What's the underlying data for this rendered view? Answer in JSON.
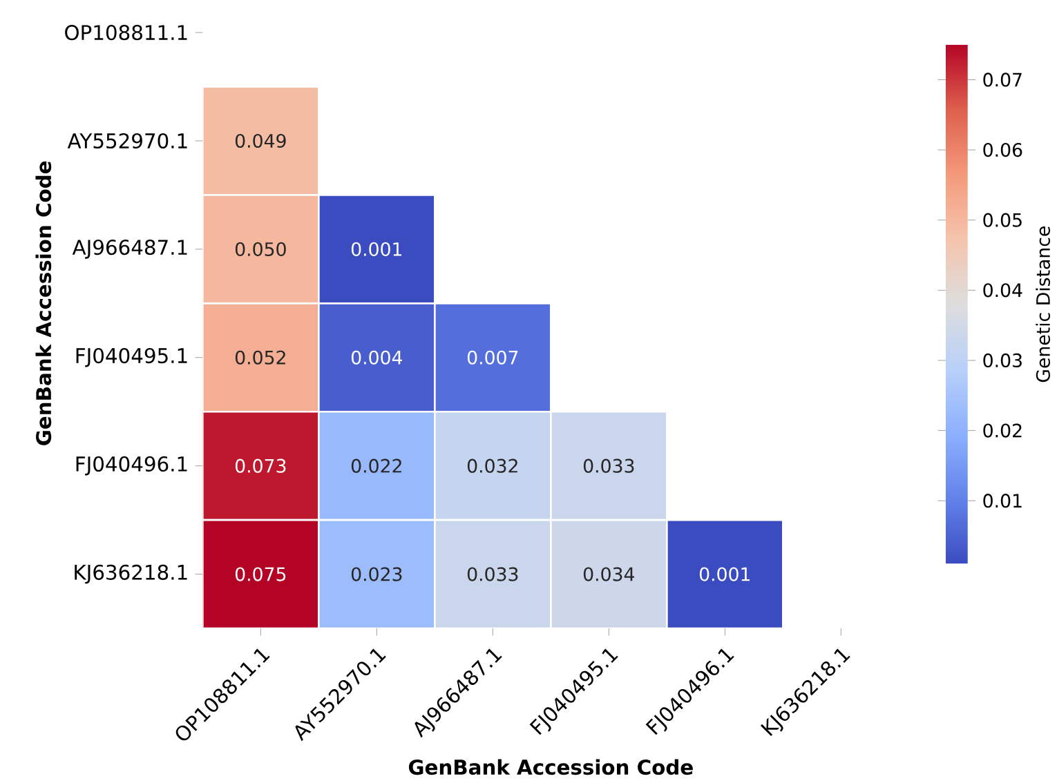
{
  "chart_data": {
    "type": "heatmap",
    "xlabel": "GenBank Accession Code",
    "ylabel": "GenBank Accession Code",
    "clabel": "Genetic Distance",
    "categories": [
      "OP108811.1",
      "AY552970.1",
      "AJ966487.1",
      "FJ040495.1",
      "FJ040496.1",
      "KJ636218.1"
    ],
    "y_categories": [
      "OP108811.1",
      "AY552970.1",
      "AJ966487.1",
      "FJ040495.1",
      "FJ040496.1",
      "KJ636218.1"
    ],
    "cells": [
      [
        null,
        null,
        null,
        null,
        null,
        null
      ],
      [
        0.049,
        null,
        null,
        null,
        null,
        null
      ],
      [
        0.05,
        0.001,
        null,
        null,
        null,
        null
      ],
      [
        0.052,
        0.004,
        0.007,
        null,
        null,
        null
      ],
      [
        0.073,
        0.022,
        0.032,
        0.033,
        null,
        null
      ],
      [
        0.075,
        0.023,
        0.033,
        0.034,
        0.001,
        null
      ]
    ],
    "cell_labels": [
      [
        null,
        null,
        null,
        null,
        null,
        null
      ],
      [
        "0.049",
        null,
        null,
        null,
        null,
        null
      ],
      [
        "0.050",
        "0.001",
        null,
        null,
        null,
        null
      ],
      [
        "0.052",
        "0.004",
        "0.007",
        null,
        null,
        null
      ],
      [
        "0.073",
        "0.022",
        "0.032",
        "0.033",
        null,
        null
      ],
      [
        "0.075",
        "0.023",
        "0.033",
        "0.034",
        "0.001",
        null
      ]
    ],
    "clim": [
      0.001,
      0.075
    ],
    "cticks": [
      0.01,
      0.02,
      0.03,
      0.04,
      0.05,
      0.06,
      0.07
    ]
  }
}
